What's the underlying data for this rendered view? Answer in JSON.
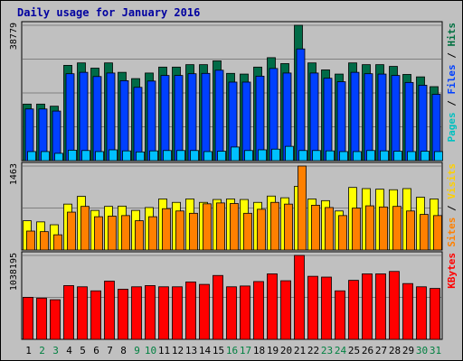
{
  "chart_data": {
    "type": "bar",
    "title": "Daily usage for January 2016",
    "categories": [
      "1",
      "2",
      "3",
      "4",
      "5",
      "6",
      "7",
      "8",
      "9",
      "10",
      "11",
      "12",
      "13",
      "14",
      "15",
      "16",
      "17",
      "18",
      "19",
      "20",
      "21",
      "22",
      "23",
      "24",
      "25",
      "26",
      "27",
      "28",
      "29",
      "30",
      "31"
    ],
    "weekend_days": [
      "2",
      "3",
      "9",
      "10",
      "16",
      "17",
      "23",
      "24",
      "30",
      "31"
    ],
    "panels": [
      {
        "id": "hits",
        "max_label": "38779",
        "ymax": 38779,
        "axis_labels": [
          {
            "text": "Pages",
            "color": "#00c0c0"
          },
          {
            "text": " / ",
            "color": "#000000"
          },
          {
            "text": "Files",
            "color": "#0040ff"
          },
          {
            "text": " / ",
            "color": "#000000"
          },
          {
            "text": "Hits",
            "color": "#007040"
          }
        ],
        "series": [
          {
            "name": "Hits",
            "color": "#006b47",
            "values": [
              16200,
              16200,
              15600,
              27300,
              28000,
              26500,
              28000,
              25300,
              23500,
              25100,
              26800,
              26800,
              27500,
              27500,
              28600,
              25000,
              24800,
              26800,
              29500,
              27800,
              38779,
              28000,
              26000,
              24800,
              28000,
              27500,
              27500,
              27000,
              24700,
              24000,
              21200
            ]
          },
          {
            "name": "Files",
            "color": "#0040ff",
            "values": [
              14800,
              14800,
              14200,
              24900,
              25300,
              24100,
              25100,
              22900,
              21000,
              22800,
              24400,
              24400,
              24900,
              25000,
              25900,
              22500,
              22500,
              24200,
              26400,
              25100,
              32000,
              25100,
              23600,
              22600,
              25300,
              24900,
              24800,
              24400,
              22400,
              21600,
              19000
            ]
          },
          {
            "name": "Pages",
            "color": "#00c0ff",
            "values": [
              2600,
              2600,
              2100,
              3000,
              2900,
              2600,
              3100,
              2800,
              2500,
              2800,
              2900,
              2900,
              2900,
              2600,
              2700,
              3900,
              2900,
              3100,
              3300,
              4100,
              2900,
              2900,
              2800,
              2600,
              2600,
              2900,
              2800,
              2700,
              2600,
              2700,
              2600
            ]
          }
        ]
      },
      {
        "id": "visits",
        "max_label": "1463",
        "ymax": 1463,
        "axis_labels": [
          {
            "text": "Sites",
            "color": "#ff8000"
          },
          {
            "text": " / ",
            "color": "#000000"
          },
          {
            "text": "Visits",
            "color": "#ffd000"
          }
        ],
        "series": [
          {
            "name": "Visits",
            "color": "#ffff00",
            "values": [
              510,
              490,
              440,
              800,
              935,
              690,
              760,
              765,
              690,
              740,
              890,
              830,
              890,
              830,
              880,
              890,
              880,
              830,
              940,
              910,
              1110,
              890,
              860,
              680,
              1090,
              1070,
              1060,
              1050,
              1070,
              920,
              890
            ]
          },
          {
            "name": "Sites",
            "color": "#ff8000",
            "values": [
              330,
              320,
              265,
              660,
              760,
              580,
              590,
              600,
              510,
              580,
              720,
              680,
              640,
              805,
              820,
              810,
              640,
              710,
              830,
              800,
              1463,
              780,
              740,
              600,
              730,
              770,
              750,
              760,
              680,
              620,
              600
            ]
          }
        ]
      },
      {
        "id": "kbytes",
        "max_label": "1038195",
        "ymax": 1038195,
        "axis_labels": [
          {
            "text": "KBytes",
            "color": "#ff0000"
          }
        ],
        "series": [
          {
            "name": "KBytes",
            "color": "#ff0000",
            "values": [
              520000,
              510000,
              490000,
              665000,
              650000,
              600000,
              720000,
              620000,
              650000,
              665000,
              650000,
              650000,
              710000,
              680000,
              790000,
              650000,
              660000,
              715000,
              810000,
              725000,
              1038195,
              780000,
              770000,
              600000,
              730000,
              810000,
              810000,
              840000,
              690000,
              650000,
              630000
            ]
          }
        ]
      }
    ]
  }
}
